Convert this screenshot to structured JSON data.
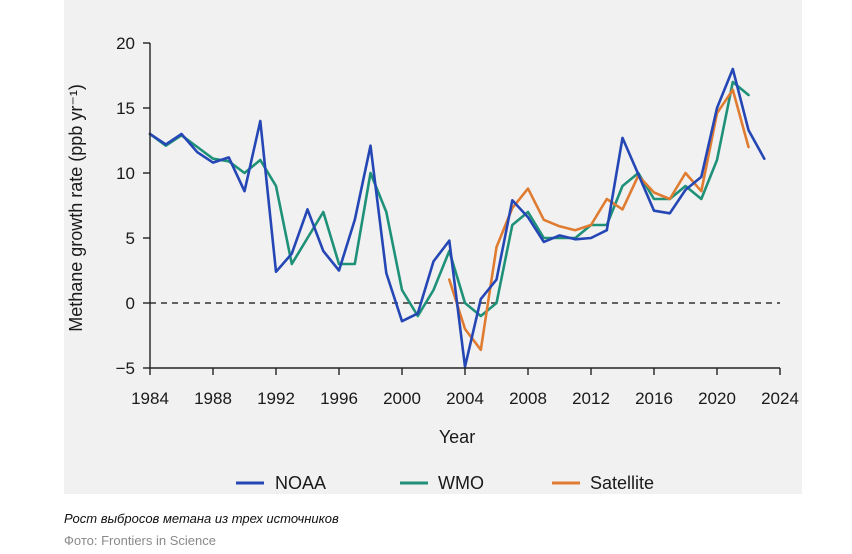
{
  "chart_data": {
    "type": "line",
    "title": "",
    "xlabel": "Year",
    "ylabel": "Methane growth rate (ppb yr⁻¹)",
    "xlim": [
      1984,
      2024
    ],
    "ylim": [
      -5,
      20
    ],
    "x_ticks": [
      1984,
      1988,
      1992,
      1996,
      2000,
      2004,
      2008,
      2012,
      2016,
      2020,
      2024
    ],
    "y_ticks": [
      -5,
      0,
      5,
      10,
      15,
      20
    ],
    "grid": false,
    "zero_reference_line": "dashed",
    "legend_position": "bottom",
    "series": [
      {
        "name": "NOAA",
        "color": "#2547b5",
        "x": [
          1984,
          1985,
          1986,
          1987,
          1988,
          1989,
          1990,
          1991,
          1992,
          1993,
          1994,
          1995,
          1996,
          1997,
          1998,
          1999,
          2000,
          2001,
          2002,
          2003,
          2004,
          2005,
          2006,
          2007,
          2008,
          2009,
          2010,
          2011,
          2012,
          2013,
          2014,
          2015,
          2016,
          2017,
          2018,
          2019,
          2020,
          2021,
          2022,
          2023
        ],
        "values": [
          13.0,
          12.2,
          13.0,
          11.6,
          10.8,
          11.2,
          8.6,
          14.0,
          2.4,
          3.8,
          7.2,
          4.0,
          2.5,
          6.4,
          12.1,
          2.3,
          -1.4,
          -0.8,
          3.2,
          4.8,
          -4.9,
          0.3,
          1.8,
          7.9,
          6.6,
          4.7,
          5.2,
          4.9,
          5.0,
          5.6,
          12.7,
          9.9,
          7.1,
          6.9,
          8.7,
          9.7,
          15.0,
          18.0,
          13.3,
          11.1
        ]
      },
      {
        "name": "WMO",
        "color": "#1f9178",
        "x": [
          1984,
          1985,
          1986,
          1987,
          1988,
          1989,
          1990,
          1991,
          1992,
          1993,
          1994,
          1995,
          1996,
          1997,
          1998,
          1999,
          2000,
          2001,
          2002,
          2003,
          2004,
          2005,
          2006,
          2007,
          2008,
          2009,
          2010,
          2011,
          2012,
          2013,
          2014,
          2015,
          2016,
          2017,
          2018,
          2019,
          2020,
          2021,
          2022
        ],
        "values": [
          13.0,
          12.1,
          12.9,
          12.0,
          11.1,
          10.9,
          10.0,
          11.0,
          9.0,
          3.0,
          5.0,
          7.0,
          3.0,
          3.0,
          10.0,
          7.0,
          1.0,
          -1.0,
          1.0,
          4.0,
          0.0,
          -1.0,
          0.0,
          6.0,
          7.0,
          5.0,
          5.0,
          5.0,
          6.0,
          6.0,
          9.0,
          10.0,
          8.0,
          8.0,
          9.0,
          8.0,
          11.0,
          17.0,
          16.0
        ]
      },
      {
        "name": "Satellite",
        "color": "#e07c32",
        "x": [
          2003,
          2004,
          2005,
          2006,
          2007,
          2008,
          2009,
          2010,
          2011,
          2012,
          2013,
          2014,
          2015,
          2016,
          2017,
          2018,
          2019,
          2020,
          2021,
          2022
        ],
        "values": [
          1.8,
          -2.0,
          -3.6,
          4.3,
          7.3,
          8.8,
          6.4,
          5.9,
          5.6,
          6.0,
          8.0,
          7.2,
          9.8,
          8.5,
          8.0,
          10.0,
          8.6,
          14.6,
          16.4,
          12.0
        ]
      }
    ]
  },
  "caption": "Рост выбросов метана из трех источников",
  "credit": "Фото: Frontiers in Science"
}
